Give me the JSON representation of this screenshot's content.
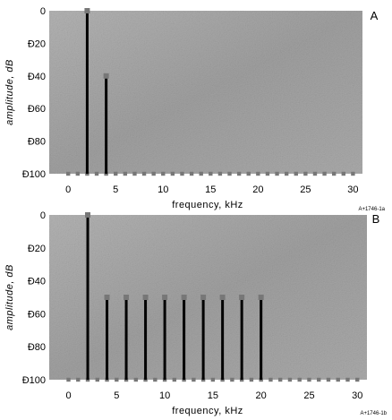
{
  "chart_data": [
    {
      "type": "bar",
      "panel_label": "A",
      "figure_id": "A+1746-1a",
      "xlabel": "frequency, kHz",
      "ylabel": "amplitude, dB",
      "xlim": [
        -2,
        31
      ],
      "ylim": [
        -100,
        0
      ],
      "x_ticks": [
        0,
        5,
        10,
        15,
        20,
        25,
        30
      ],
      "y_ticks": [
        0,
        -20,
        -40,
        -60,
        -80,
        -100
      ],
      "y_tick_labels": [
        "0",
        "Ð20",
        "Ð40",
        "Ð60",
        "Ð80",
        "Ð100"
      ],
      "grid": false,
      "x": [
        2,
        4
      ],
      "values": [
        0,
        -40
      ],
      "plot_bg": "#a8a8a8",
      "bar_color": "#000000",
      "marker_color": "#777777"
    },
    {
      "type": "bar",
      "panel_label": "B",
      "figure_id": "A+1746-1b",
      "xlabel": "frequency, kHz",
      "ylabel": "amplitude, dB",
      "xlim": [
        -2,
        31
      ],
      "ylim": [
        -100,
        0
      ],
      "x_ticks": [
        0,
        5,
        10,
        15,
        20,
        25,
        30
      ],
      "y_ticks": [
        0,
        -20,
        -40,
        -60,
        -80,
        -100
      ],
      "y_tick_labels": [
        "0",
        "Ð20",
        "Ð40",
        "Ð60",
        "Ð80",
        "Ð100"
      ],
      "grid": false,
      "x": [
        2,
        4,
        6,
        8,
        10,
        12,
        14,
        16,
        18,
        20
      ],
      "values": [
        0,
        -50,
        -50,
        -50,
        -50,
        -50,
        -50,
        -50,
        -50,
        -50
      ],
      "plot_bg": "#a8a8a8",
      "bar_color": "#000000",
      "marker_color": "#777777"
    }
  ]
}
